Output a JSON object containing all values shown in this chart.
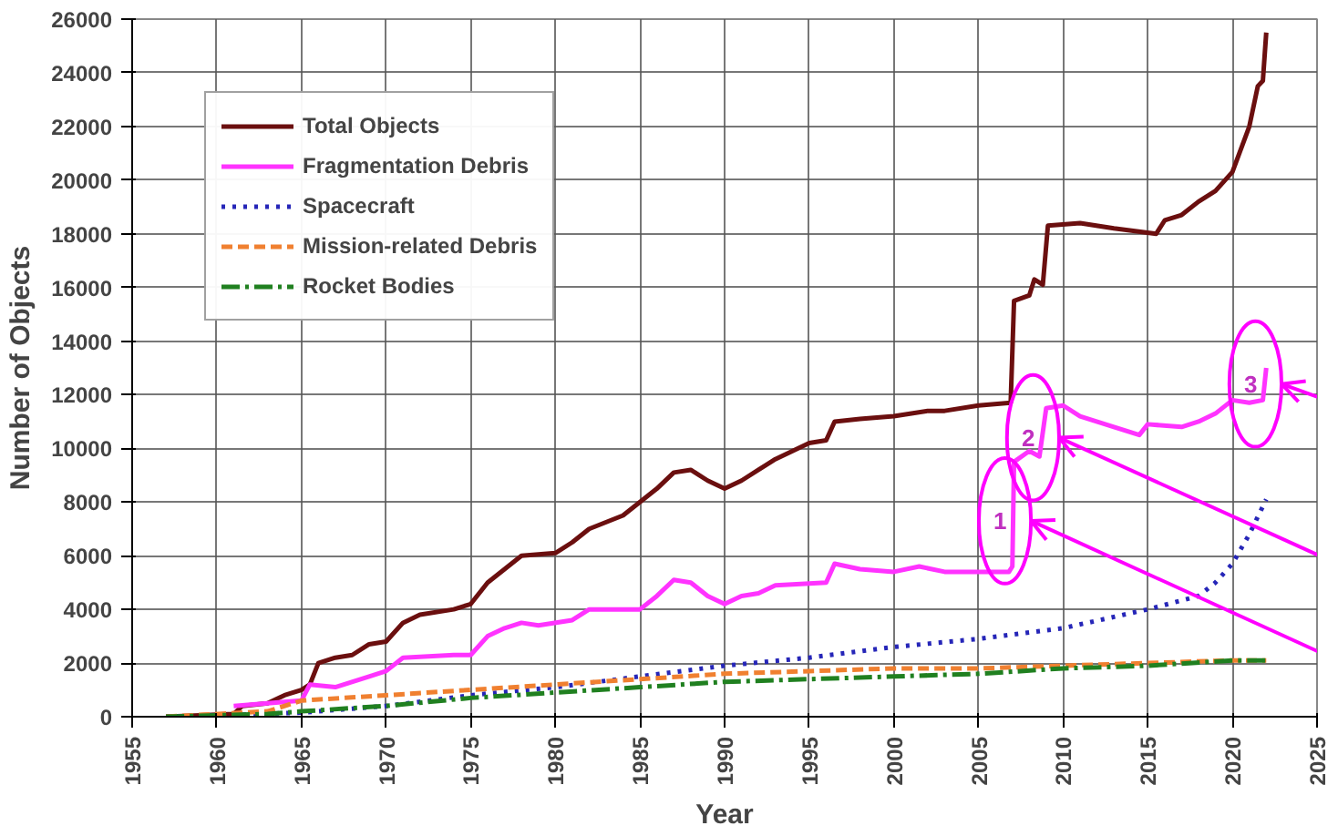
{
  "chart_data": {
    "type": "line",
    "xlabel": "Year",
    "ylabel": "Number of Objects",
    "xlim": [
      1955,
      2025
    ],
    "ylim": [
      0,
      26000
    ],
    "xticks": [
      1955,
      1960,
      1965,
      1970,
      1975,
      1980,
      1985,
      1990,
      1995,
      2000,
      2005,
      2010,
      2015,
      2020,
      2025
    ],
    "yticks": [
      0,
      2000,
      4000,
      6000,
      8000,
      10000,
      12000,
      14000,
      16000,
      18000,
      20000,
      22000,
      24000,
      26000
    ],
    "grid": true,
    "legend": "top left",
    "marker": "none",
    "annotations": [
      {
        "text": "1",
        "x": 2007.1,
        "y": 7300
      },
      {
        "text": "2",
        "x": 2008.76,
        "y": 10400
      },
      {
        "text": "3",
        "x": 2021.9,
        "y": 12400
      }
    ],
    "series": [
      {
        "name": "Total Objects",
        "color": "#6b0f0f",
        "line_style": "solid",
        "x": [
          1957,
          1961,
          1961.5,
          1963,
          1964,
          1965,
          1965.5,
          1966,
          1967,
          1968,
          1969,
          1970,
          1971,
          1972,
          1974,
          1975,
          1976,
          1977,
          1978,
          1980,
          1981,
          1982,
          1984,
          1986,
          1987,
          1988,
          1989,
          1990,
          1991,
          1992,
          1993,
          1995,
          1996,
          1996.5,
          1998,
          2000,
          2002,
          2003,
          2005,
          2006.9,
          2007.1,
          2008,
          2008.3,
          2008.8,
          2009.1,
          2011,
          2013,
          2015.5,
          2016,
          2017,
          2018,
          2019,
          2020,
          2021,
          2021.5,
          2021.8,
          2022
        ],
        "values": [
          0,
          100,
          400,
          500,
          800,
          1000,
          1200,
          2000,
          2200,
          2300,
          2700,
          2800,
          3500,
          3800,
          4000,
          4200,
          5000,
          5500,
          6000,
          6100,
          6500,
          7000,
          7500,
          8500,
          9100,
          9200,
          8800,
          8500,
          8800,
          9200,
          9600,
          10200,
          10300,
          11000,
          11100,
          11200,
          11400,
          11400,
          11600,
          11700,
          15500,
          15700,
          16300,
          16100,
          18300,
          18400,
          18200,
          18000,
          18500,
          18700,
          19200,
          19600,
          20300,
          22000,
          23500,
          23700,
          25500
        ]
      },
      {
        "name": "Fragmentation Debris",
        "color": "#ff33ff",
        "line_style": "solid",
        "x": [
          1961,
          1963,
          1965,
          1965.5,
          1967,
          1969,
          1970,
          1971,
          1974,
          1975,
          1976,
          1977,
          1978,
          1979,
          1981,
          1982,
          1985,
          1986,
          1987,
          1988,
          1989,
          1990,
          1991,
          1992,
          1993,
          1996,
          1996.5,
          1998,
          2000,
          2001.5,
          2003,
          2006.8,
          2007,
          2007.1,
          2008,
          2008.6,
          2009,
          2010,
          2011,
          2013,
          2014.5,
          2015,
          2017,
          2018,
          2019,
          2020,
          2021,
          2021.8,
          2022
        ],
        "values": [
          400,
          500,
          600,
          1200,
          1100,
          1500,
          1700,
          2200,
          2300,
          2300,
          3000,
          3300,
          3500,
          3400,
          3600,
          4000,
          4000,
          4500,
          5100,
          5000,
          4500,
          4200,
          4500,
          4600,
          4900,
          5000,
          5700,
          5500,
          5400,
          5600,
          5400,
          5400,
          5600,
          9500,
          9900,
          9700,
          11500,
          11600,
          11200,
          10800,
          10500,
          10900,
          10800,
          11000,
          11300,
          11800,
          11700,
          11800,
          13000
        ]
      },
      {
        "name": "Spacecraft",
        "color": "#2626b8",
        "line_style": "dotted",
        "x": [
          1957,
          1960,
          1965,
          1970,
          1975,
          1980,
          1985,
          1990,
          1995,
          2000,
          2005,
          2010,
          2015,
          2018,
          2019,
          2020,
          2021,
          2022
        ],
        "values": [
          0,
          50,
          150,
          400,
          800,
          1100,
          1500,
          1900,
          2200,
          2600,
          2900,
          3300,
          4000,
          4500,
          5000,
          5700,
          6800,
          8100
        ]
      },
      {
        "name": "Mission-related Debris",
        "color": "#f08030",
        "line_style": "dashed",
        "x": [
          1957,
          1963,
          1965,
          1970,
          1975,
          1980,
          1985,
          1990,
          1995,
          2000,
          2005,
          2010,
          2015,
          2020,
          2022
        ],
        "values": [
          0,
          200,
          600,
          800,
          1000,
          1200,
          1400,
          1600,
          1700,
          1800,
          1800,
          1900,
          2000,
          2100,
          2100
        ]
      },
      {
        "name": "Rocket Bodies",
        "color": "#208020",
        "line_style": "dashdot",
        "x": [
          1957,
          1963,
          1965,
          1970,
          1975,
          1980,
          1985,
          1990,
          1995,
          2000,
          2005,
          2010,
          2015,
          2020,
          2022
        ],
        "values": [
          0,
          100,
          200,
          400,
          700,
          900,
          1100,
          1300,
          1400,
          1500,
          1600,
          1800,
          1900,
          2100,
          2100
        ]
      }
    ]
  }
}
